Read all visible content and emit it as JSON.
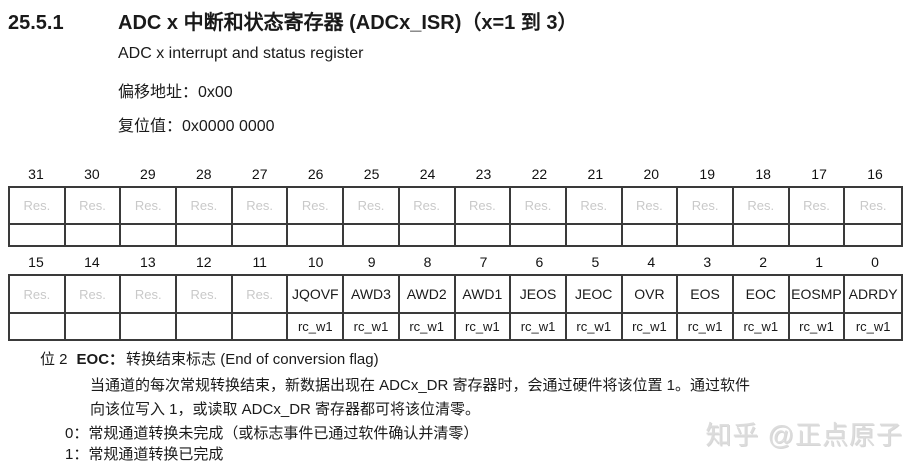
{
  "header": {
    "section_number": "25.5.1",
    "title": "ADC x 中断和状态寄存器 (ADCx_ISR)（x=1 到 3）",
    "subtitle": "ADC x interrupt and status register",
    "offset_address": "偏移地址：0x00",
    "reset_value": "复位值：0x0000 0000"
  },
  "register_table": {
    "high_word": {
      "bits": [
        "31",
        "30",
        "29",
        "28",
        "27",
        "26",
        "25",
        "24",
        "23",
        "22",
        "21",
        "20",
        "19",
        "18",
        "17",
        "16"
      ],
      "fields": [
        "Res.",
        "Res.",
        "Res.",
        "Res.",
        "Res.",
        "Res.",
        "Res.",
        "Res.",
        "Res.",
        "Res.",
        "Res.",
        "Res.",
        "Res.",
        "Res.",
        "Res.",
        "Res."
      ],
      "access": [
        "",
        "",
        "",
        "",
        "",
        "",
        "",
        "",
        "",
        "",
        "",
        "",
        "",
        "",
        "",
        ""
      ]
    },
    "low_word": {
      "bits": [
        "15",
        "14",
        "13",
        "12",
        "11",
        "10",
        "9",
        "8",
        "7",
        "6",
        "5",
        "4",
        "3",
        "2",
        "1",
        "0"
      ],
      "fields": [
        "Res.",
        "Res.",
        "Res.",
        "Res.",
        "Res.",
        "JQOVF",
        "AWD3",
        "AWD2",
        "AWD1",
        "JEOS",
        "JEOC",
        "OVR",
        "EOS",
        "EOC",
        "EOSMP",
        "ADRDY"
      ],
      "access": [
        "",
        "",
        "",
        "",
        "",
        "rc_w1",
        "rc_w1",
        "rc_w1",
        "rc_w1",
        "rc_w1",
        "rc_w1",
        "rc_w1",
        "rc_w1",
        "rc_w1",
        "rc_w1",
        "rc_w1"
      ]
    },
    "reserved_label": "Res."
  },
  "description": {
    "bit_label": "位 2",
    "field_name": "EOC：",
    "field_title": "转换结束标志 (End of conversion flag)",
    "paragraph_line1": "当通道的每次常规转换结束，新数据出现在 ADCx_DR 寄存器时，会通过硬件将该位置 1。通过软件",
    "paragraph_line2": "向该位写入 1，或读取 ADCx_DR 寄存器都可将该位清零。",
    "value0": "0：常规通道转换未完成（或标志事件已通过软件确认并清零）",
    "value1": "1：常规通道转换已完成"
  },
  "watermark": "知乎 @正点原子",
  "colors": {
    "text": "#1a1a1a",
    "reserved_text": "#c9c9c9",
    "table_border": "#3a3a3a",
    "watermark": "#dcdcdc"
  }
}
